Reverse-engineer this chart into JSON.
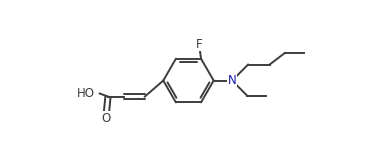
{
  "bg_color": "#ffffff",
  "bond_color": "#3d3d3d",
  "atom_color_N": "#1a1aaa",
  "atom_color_F": "#3d3d3d",
  "atom_color_O": "#3d3d3d",
  "line_width": 1.4,
  "font_size_atom": 8.5,
  "fig_width": 3.8,
  "fig_height": 1.55,
  "dpi": 100,
  "xlim": [
    0,
    10.5
  ],
  "ylim": [
    -1.2,
    3.8
  ]
}
